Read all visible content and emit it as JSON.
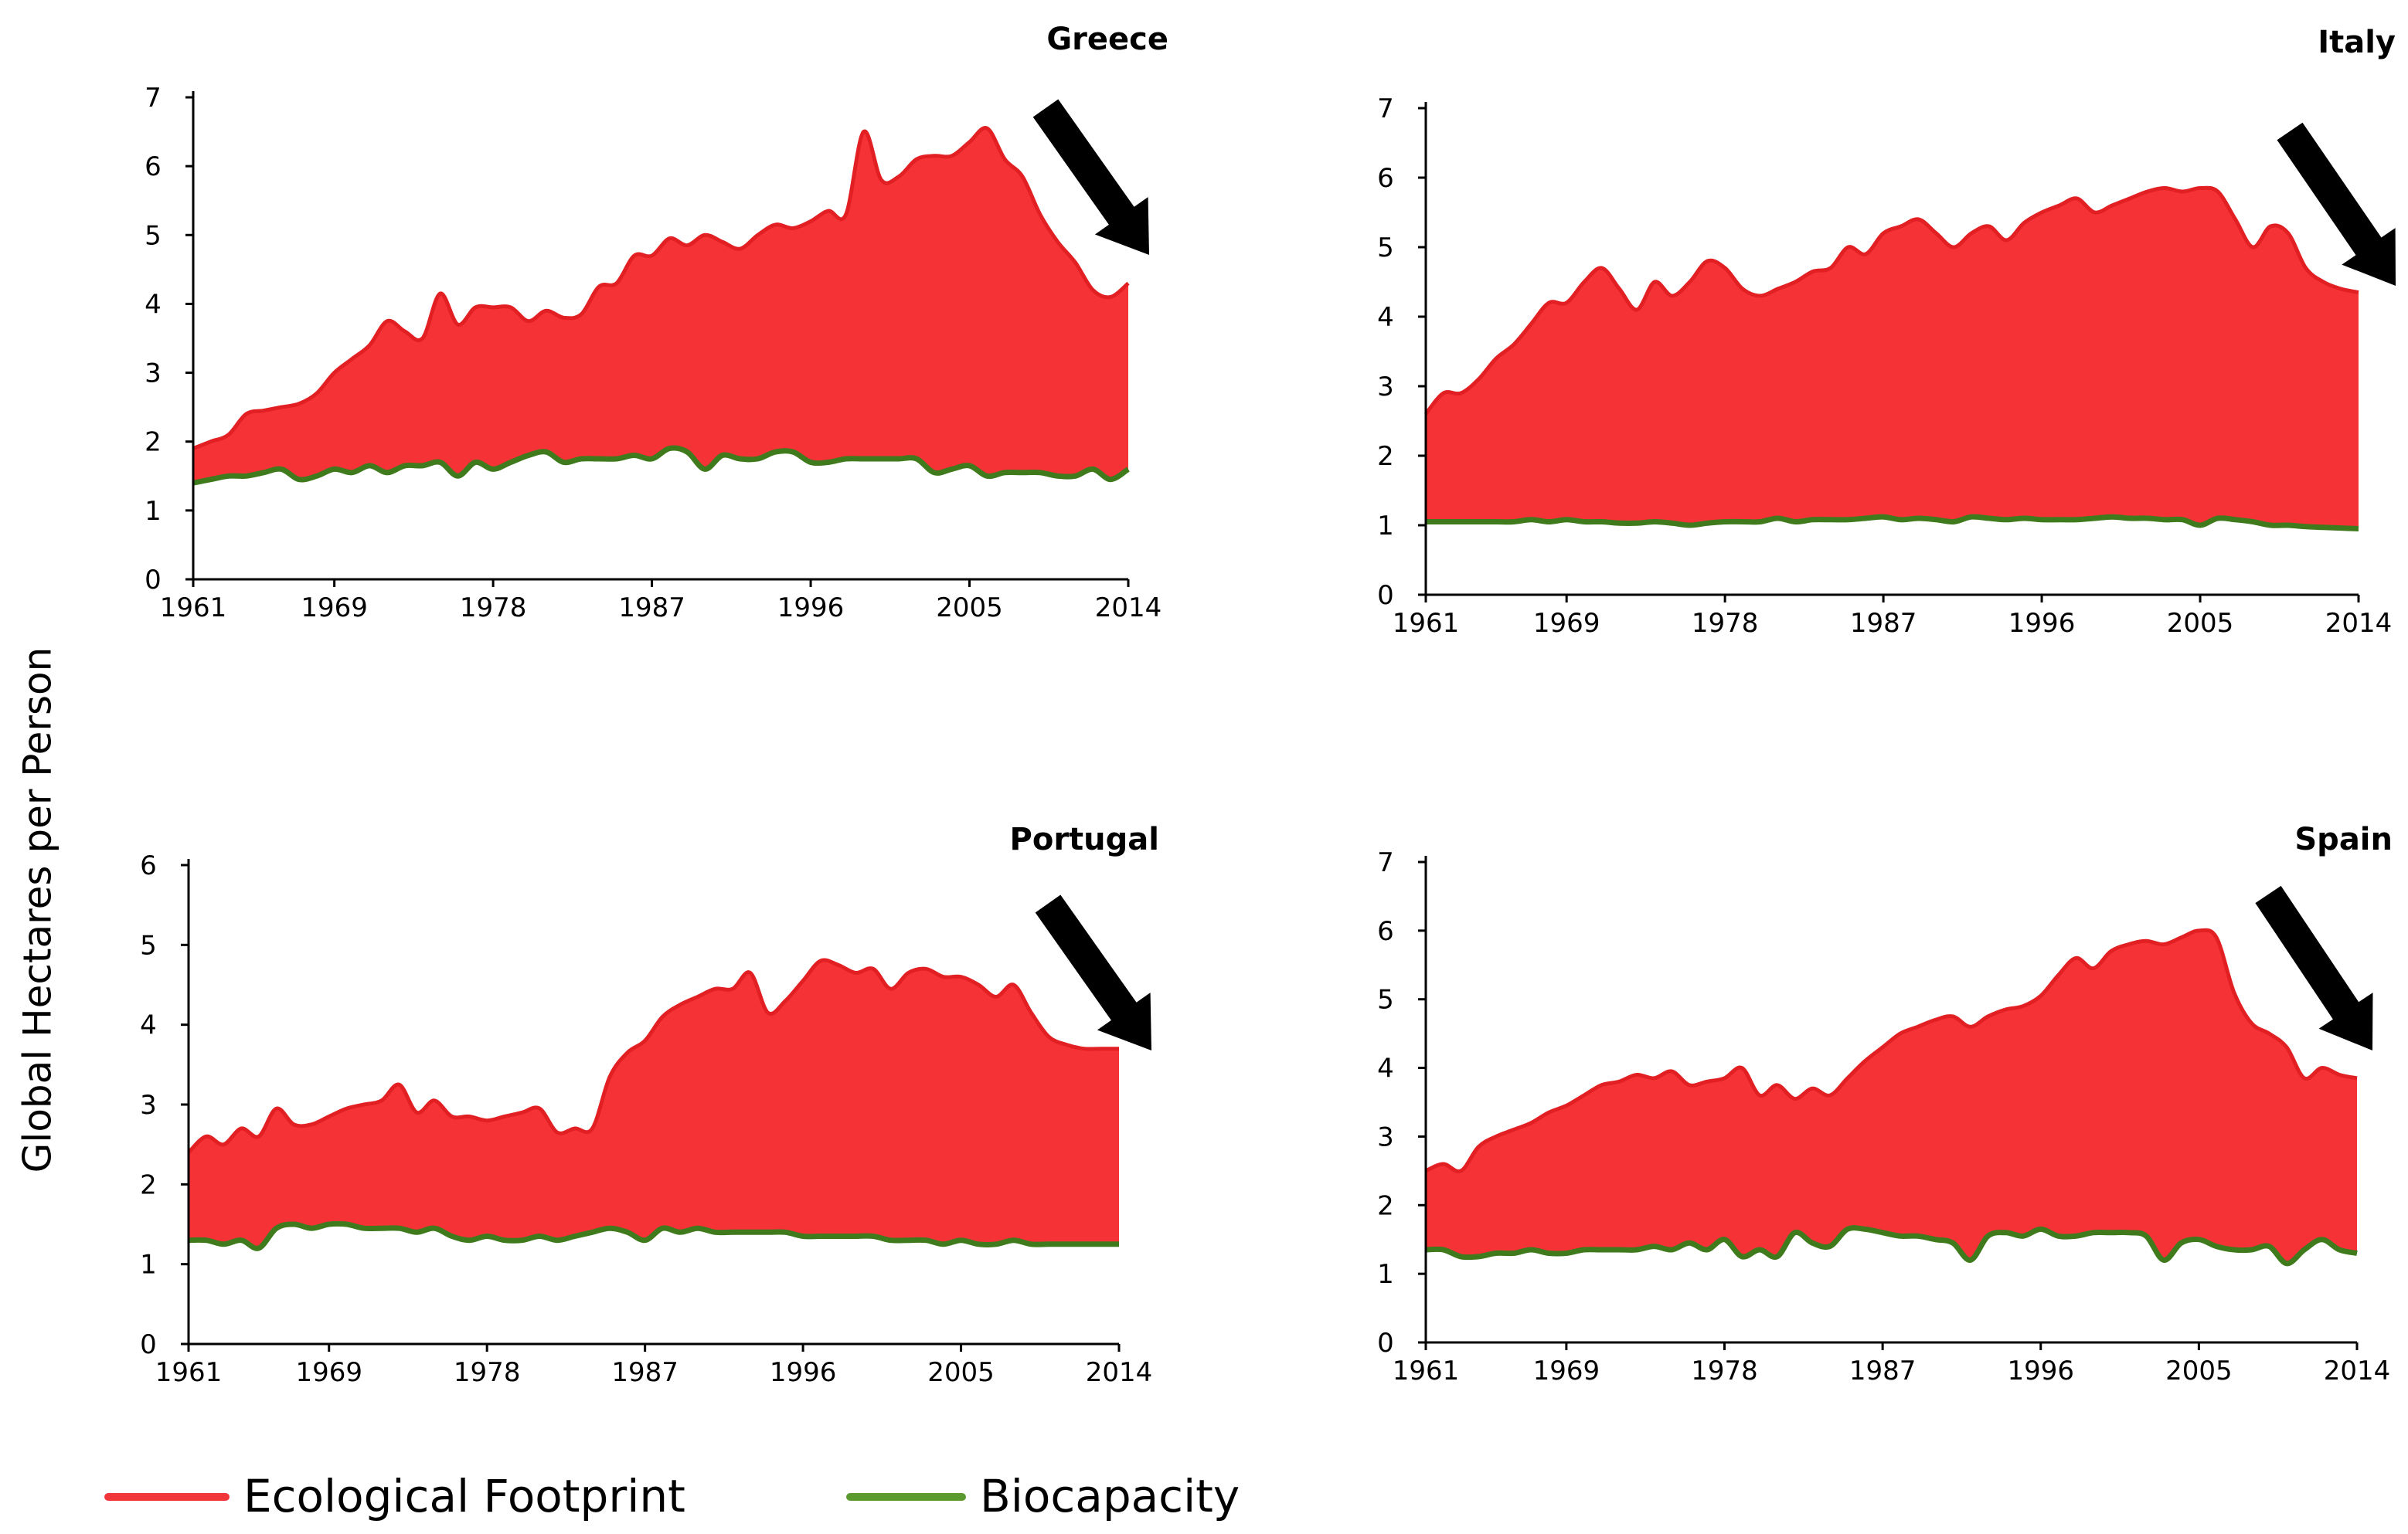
{
  "figure": {
    "ylabel": "Global Hectares per Person",
    "legend": [
      {
        "label": "Ecological Footprint",
        "color": "#f2373a"
      },
      {
        "label": "Biocapacity",
        "color": "#5b9a2f"
      }
    ]
  },
  "colors": {
    "footprint_fill": "#f53336",
    "footprint_line": "#e21f22",
    "biocapacity_line": "#3f7a1c",
    "arrow": "#000000"
  },
  "chart_data": [
    {
      "type": "area",
      "title": "Greece",
      "xlabel": "",
      "ylabel": "Global Hectares per Person",
      "x_ticks": [
        "1961",
        "1969",
        "1978",
        "1987",
        "1996",
        "2005",
        "2014"
      ],
      "y_ticks": [
        "0",
        "1",
        "2",
        "3",
        "4",
        "5",
        "6",
        "7"
      ],
      "xlim": [
        1961,
        2014
      ],
      "ylim": [
        0,
        7
      ],
      "years": [
        1961,
        1962,
        1963,
        1964,
        1965,
        1966,
        1967,
        1968,
        1969,
        1970,
        1971,
        1972,
        1973,
        1974,
        1975,
        1976,
        1977,
        1978,
        1979,
        1980,
        1981,
        1982,
        1983,
        1984,
        1985,
        1986,
        1987,
        1988,
        1989,
        1990,
        1991,
        1992,
        1993,
        1994,
        1995,
        1996,
        1997,
        1998,
        1999,
        2000,
        2001,
        2002,
        2003,
        2004,
        2005,
        2006,
        2007,
        2008,
        2009,
        2010,
        2011,
        2012,
        2013,
        2014
      ],
      "series": [
        {
          "name": "Ecological Footprint",
          "values": [
            1.9,
            2.0,
            2.1,
            2.4,
            2.45,
            2.5,
            2.55,
            2.7,
            3.0,
            3.2,
            3.4,
            3.75,
            3.6,
            3.5,
            4.15,
            3.7,
            3.95,
            3.95,
            3.95,
            3.75,
            3.9,
            3.8,
            3.85,
            4.25,
            4.3,
            4.7,
            4.7,
            4.95,
            4.85,
            5.0,
            4.9,
            4.8,
            5.0,
            5.15,
            5.1,
            5.2,
            5.35,
            5.3,
            6.5,
            5.8,
            5.85,
            6.1,
            6.15,
            6.15,
            6.35,
            6.55,
            6.1,
            5.85,
            5.3,
            4.9,
            4.6,
            4.2,
            4.1,
            4.3
          ]
        },
        {
          "name": "Biocapacity",
          "values": [
            1.4,
            1.45,
            1.5,
            1.5,
            1.55,
            1.6,
            1.45,
            1.5,
            1.6,
            1.55,
            1.65,
            1.55,
            1.65,
            1.65,
            1.7,
            1.5,
            1.7,
            1.6,
            1.7,
            1.8,
            1.85,
            1.7,
            1.75,
            1.75,
            1.75,
            1.8,
            1.75,
            1.9,
            1.85,
            1.6,
            1.8,
            1.75,
            1.75,
            1.85,
            1.85,
            1.7,
            1.7,
            1.75,
            1.75,
            1.75,
            1.75,
            1.75,
            1.55,
            1.6,
            1.65,
            1.5,
            1.55,
            1.55,
            1.55,
            1.5,
            1.5,
            1.6,
            1.45,
            1.6
          ]
        }
      ]
    },
    {
      "type": "area",
      "title": "Italy",
      "xlabel": "",
      "ylabel": "Global Hectares per Person",
      "x_ticks": [
        "1961",
        "1969",
        "1978",
        "1987",
        "1996",
        "2005",
        "2014"
      ],
      "y_ticks": [
        "0",
        "1",
        "2",
        "3",
        "4",
        "5",
        "6",
        "7"
      ],
      "xlim": [
        1961,
        2014
      ],
      "ylim": [
        0,
        7
      ],
      "years": [
        1961,
        1962,
        1963,
        1964,
        1965,
        1966,
        1967,
        1968,
        1969,
        1970,
        1971,
        1972,
        1973,
        1974,
        1975,
        1976,
        1977,
        1978,
        1979,
        1980,
        1981,
        1982,
        1983,
        1984,
        1985,
        1986,
        1987,
        1988,
        1989,
        1990,
        1991,
        1992,
        1993,
        1994,
        1995,
        1996,
        1997,
        1998,
        1999,
        2000,
        2001,
        2002,
        2003,
        2004,
        2005,
        2006,
        2007,
        2008,
        2009,
        2010,
        2011,
        2012,
        2013,
        2014
      ],
      "series": [
        {
          "name": "Ecological Footprint",
          "values": [
            2.6,
            2.9,
            2.9,
            3.1,
            3.4,
            3.6,
            3.9,
            4.2,
            4.2,
            4.5,
            4.7,
            4.4,
            4.1,
            4.5,
            4.3,
            4.5,
            4.8,
            4.7,
            4.4,
            4.3,
            4.4,
            4.5,
            4.65,
            4.7,
            5.0,
            4.9,
            5.2,
            5.3,
            5.4,
            5.2,
            5.0,
            5.2,
            5.3,
            5.1,
            5.35,
            5.5,
            5.6,
            5.7,
            5.5,
            5.6,
            5.7,
            5.8,
            5.85,
            5.8,
            5.85,
            5.8,
            5.4,
            5.0,
            5.3,
            5.2,
            4.7,
            4.5,
            4.4,
            4.35
          ]
        },
        {
          "name": "Biocapacity",
          "values": [
            1.05,
            1.05,
            1.05,
            1.05,
            1.05,
            1.05,
            1.08,
            1.05,
            1.08,
            1.05,
            1.05,
            1.03,
            1.03,
            1.05,
            1.03,
            1.0,
            1.03,
            1.05,
            1.05,
            1.05,
            1.1,
            1.05,
            1.08,
            1.08,
            1.08,
            1.1,
            1.12,
            1.08,
            1.1,
            1.08,
            1.05,
            1.12,
            1.1,
            1.08,
            1.1,
            1.08,
            1.08,
            1.08,
            1.1,
            1.12,
            1.1,
            1.1,
            1.08,
            1.08,
            1.0,
            1.1,
            1.08,
            1.05,
            1.0,
            1.0,
            0.98,
            0.97,
            0.96,
            0.95
          ]
        }
      ]
    },
    {
      "type": "area",
      "title": "Portugal",
      "xlabel": "",
      "ylabel": "Global Hectares per Person",
      "x_ticks": [
        "1961",
        "1969",
        "1978",
        "1987",
        "1996",
        "2005",
        "2014"
      ],
      "y_ticks": [
        "0",
        "1",
        "2",
        "3",
        "4",
        "5",
        "6"
      ],
      "xlim": [
        1961,
        2014
      ],
      "ylim": [
        0,
        6
      ],
      "years": [
        1961,
        1962,
        1963,
        1964,
        1965,
        1966,
        1967,
        1968,
        1969,
        1970,
        1971,
        1972,
        1973,
        1974,
        1975,
        1976,
        1977,
        1978,
        1979,
        1980,
        1981,
        1982,
        1983,
        1984,
        1985,
        1986,
        1987,
        1988,
        1989,
        1990,
        1991,
        1992,
        1993,
        1994,
        1995,
        1996,
        1997,
        1998,
        1999,
        2000,
        2001,
        2002,
        2003,
        2004,
        2005,
        2006,
        2007,
        2008,
        2009,
        2010,
        2011,
        2012,
        2013,
        2014
      ],
      "series": [
        {
          "name": "Ecological Footprint",
          "values": [
            2.4,
            2.6,
            2.5,
            2.7,
            2.6,
            2.95,
            2.75,
            2.75,
            2.85,
            2.95,
            3.0,
            3.05,
            3.25,
            2.9,
            3.05,
            2.85,
            2.85,
            2.8,
            2.85,
            2.9,
            2.95,
            2.65,
            2.7,
            2.7,
            3.35,
            3.65,
            3.8,
            4.1,
            4.25,
            4.35,
            4.45,
            4.45,
            4.65,
            4.15,
            4.3,
            4.55,
            4.8,
            4.75,
            4.65,
            4.7,
            4.45,
            4.65,
            4.7,
            4.6,
            4.6,
            4.5,
            4.35,
            4.5,
            4.15,
            3.85,
            3.75,
            3.7,
            3.7,
            3.7
          ]
        },
        {
          "name": "Biocapacity",
          "values": [
            1.3,
            1.3,
            1.25,
            1.3,
            1.2,
            1.45,
            1.5,
            1.45,
            1.5,
            1.5,
            1.45,
            1.45,
            1.45,
            1.4,
            1.45,
            1.35,
            1.3,
            1.35,
            1.3,
            1.3,
            1.35,
            1.3,
            1.35,
            1.4,
            1.45,
            1.4,
            1.3,
            1.45,
            1.4,
            1.45,
            1.4,
            1.4,
            1.4,
            1.4,
            1.4,
            1.35,
            1.35,
            1.35,
            1.35,
            1.35,
            1.3,
            1.3,
            1.3,
            1.25,
            1.3,
            1.25,
            1.25,
            1.3,
            1.25,
            1.25,
            1.25,
            1.25,
            1.25,
            1.25
          ]
        }
      ]
    },
    {
      "type": "area",
      "title": "Spain",
      "xlabel": "",
      "ylabel": "Global Hectares per Person",
      "x_ticks": [
        "1961",
        "1969",
        "1978",
        "1987",
        "1996",
        "2005",
        "2014"
      ],
      "y_ticks": [
        "0",
        "1",
        "2",
        "3",
        "4",
        "5",
        "6",
        "7"
      ],
      "xlim": [
        1961,
        2014
      ],
      "ylim": [
        0,
        7
      ],
      "years": [
        1961,
        1962,
        1963,
        1964,
        1965,
        1966,
        1967,
        1968,
        1969,
        1970,
        1971,
        1972,
        1973,
        1974,
        1975,
        1976,
        1977,
        1978,
        1979,
        1980,
        1981,
        1982,
        1983,
        1984,
        1985,
        1986,
        1987,
        1988,
        1989,
        1990,
        1991,
        1992,
        1993,
        1994,
        1995,
        1996,
        1997,
        1998,
        1999,
        2000,
        2001,
        2002,
        2003,
        2004,
        2005,
        2006,
        2007,
        2008,
        2009,
        2010,
        2011,
        2012,
        2013,
        2014
      ],
      "series": [
        {
          "name": "Ecological Footprint",
          "values": [
            2.5,
            2.6,
            2.5,
            2.85,
            3.0,
            3.1,
            3.2,
            3.35,
            3.45,
            3.6,
            3.75,
            3.8,
            3.9,
            3.85,
            3.95,
            3.75,
            3.8,
            3.85,
            4.0,
            3.6,
            3.75,
            3.55,
            3.7,
            3.6,
            3.85,
            4.1,
            4.3,
            4.5,
            4.6,
            4.7,
            4.75,
            4.6,
            4.75,
            4.85,
            4.9,
            5.05,
            5.35,
            5.6,
            5.45,
            5.7,
            5.8,
            5.85,
            5.8,
            5.9,
            6.0,
            5.9,
            5.1,
            4.65,
            4.5,
            4.3,
            3.85,
            4.0,
            3.9,
            3.85
          ]
        },
        {
          "name": "Biocapacity",
          "values": [
            1.35,
            1.35,
            1.25,
            1.25,
            1.3,
            1.3,
            1.35,
            1.3,
            1.3,
            1.35,
            1.35,
            1.35,
            1.35,
            1.4,
            1.35,
            1.45,
            1.35,
            1.5,
            1.25,
            1.35,
            1.25,
            1.6,
            1.45,
            1.4,
            1.65,
            1.65,
            1.6,
            1.55,
            1.55,
            1.5,
            1.45,
            1.2,
            1.55,
            1.6,
            1.55,
            1.65,
            1.55,
            1.55,
            1.6,
            1.6,
            1.6,
            1.55,
            1.2,
            1.45,
            1.5,
            1.4,
            1.35,
            1.35,
            1.4,
            1.15,
            1.35,
            1.5,
            1.35,
            1.3
          ]
        }
      ]
    }
  ]
}
